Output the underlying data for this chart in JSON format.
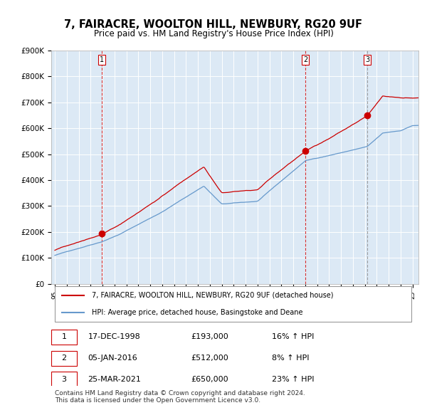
{
  "title": "7, FAIRACRE, WOOLTON HILL, NEWBURY, RG20 9UF",
  "subtitle": "Price paid vs. HM Land Registry's House Price Index (HPI)",
  "x_start_year": 1995,
  "x_end_year": 2025,
  "y_min": 0,
  "y_max": 900000,
  "y_ticks": [
    0,
    100000,
    200000,
    300000,
    400000,
    500000,
    600000,
    700000,
    800000,
    900000
  ],
  "y_tick_labels": [
    "£0",
    "£100K",
    "£200K",
    "£300K",
    "£400K",
    "£500K",
    "£600K",
    "£700K",
    "£800K",
    "£900K"
  ],
  "sales": [
    {
      "date": 1998.96,
      "price": 193000,
      "label": "1"
    },
    {
      "date": 2016.02,
      "price": 512000,
      "label": "2"
    },
    {
      "date": 2021.23,
      "price": 650000,
      "label": "3"
    }
  ],
  "sale_labels_info": [
    {
      "num": "1",
      "date_str": "17-DEC-1998",
      "price_str": "£193,000",
      "hpi_str": "16% ↑ HPI"
    },
    {
      "num": "2",
      "date_str": "05-JAN-2016",
      "price_str": "£512,000",
      "hpi_str": "8% ↑ HPI"
    },
    {
      "num": "3",
      "date_str": "25-MAR-2021",
      "price_str": "£650,000",
      "hpi_str": "23% ↑ HPI"
    }
  ],
  "bg_color": "#dce9f5",
  "plot_bg_color": "#dce9f5",
  "red_line_color": "#cc0000",
  "blue_line_color": "#6699cc",
  "sale_dot_color": "#cc0000",
  "vline_color_solid": "#cc0000",
  "vline_color_dashed": "#555555",
  "grid_color": "#ffffff",
  "title_fontsize": 11,
  "subtitle_fontsize": 9,
  "legend_line1": "7, FAIRACRE, WOOLTON HILL, NEWBURY, RG20 9UF (detached house)",
  "legend_line2": "HPI: Average price, detached house, Basingstoke and Deane",
  "footnote": "Contains HM Land Registry data © Crown copyright and database right 2024.\nThis data is licensed under the Open Government Licence v3.0."
}
